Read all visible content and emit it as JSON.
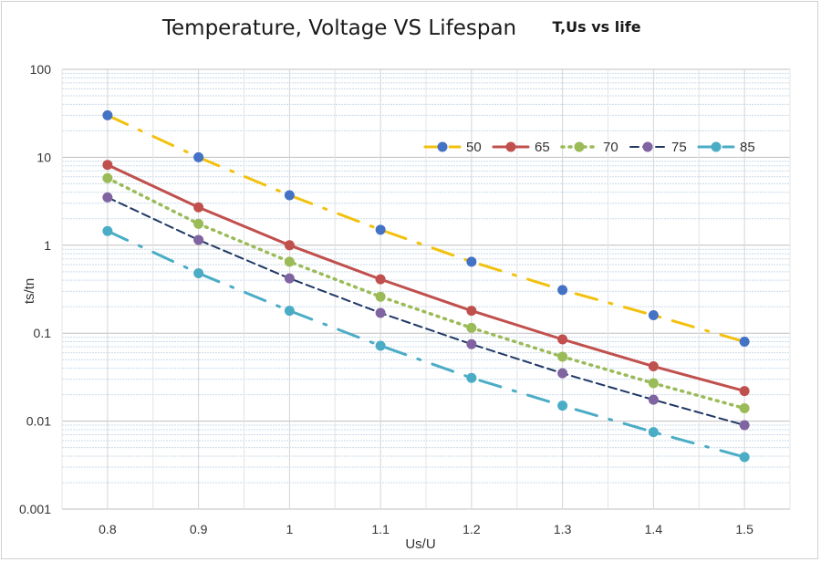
{
  "chart_data": {
    "type": "line",
    "title": "Temperature, Voltage VS Lifespan",
    "subtitle": "T,Us vs life",
    "xlabel": "Us/U",
    "ylabel": "ts/tn",
    "x": [
      0.8,
      0.9,
      1.0,
      1.1,
      1.2,
      1.3,
      1.4,
      1.5
    ],
    "x_tick_labels": [
      "0.8",
      "0.9",
      "1",
      "1.1",
      "1.2",
      "1.3",
      "1.4",
      "1.5"
    ],
    "xlim": [
      0.75,
      1.55
    ],
    "yscale": "log",
    "ylim": [
      0.001,
      100
    ],
    "y_tick_labels": [
      "0.001",
      "0.01",
      "0.1",
      "1",
      "10",
      "100"
    ],
    "grid": true,
    "legend_position": "top-right",
    "series": [
      {
        "name": "50",
        "color": "#f2c10e",
        "dash": "dash-dot",
        "marker_color": "#4472c4",
        "values": [
          30,
          10,
          3.7,
          1.5,
          0.65,
          0.31,
          0.16,
          0.08
        ]
      },
      {
        "name": "65",
        "color": "#c0504d",
        "dash": "solid",
        "marker_color": "#c0504d",
        "values": [
          8.2,
          2.7,
          1.0,
          0.41,
          0.18,
          0.085,
          0.042,
          0.022
        ]
      },
      {
        "name": "70",
        "color": "#9bbb59",
        "dash": "dot",
        "marker_color": "#9bbb59",
        "values": [
          5.8,
          1.75,
          0.65,
          0.26,
          0.115,
          0.054,
          0.027,
          0.014
        ]
      },
      {
        "name": "75",
        "color": "#1f3864",
        "dash": "dash",
        "marker_color": "#8064a2",
        "values": [
          3.5,
          1.15,
          0.42,
          0.17,
          0.075,
          0.035,
          0.0175,
          0.009
        ]
      },
      {
        "name": "85",
        "color": "#4bacc6",
        "dash": "dash-dot",
        "marker_color": "#4bacc6",
        "values": [
          1.45,
          0.48,
          0.18,
          0.072,
          0.031,
          0.015,
          0.0075,
          0.0039
        ]
      }
    ]
  }
}
